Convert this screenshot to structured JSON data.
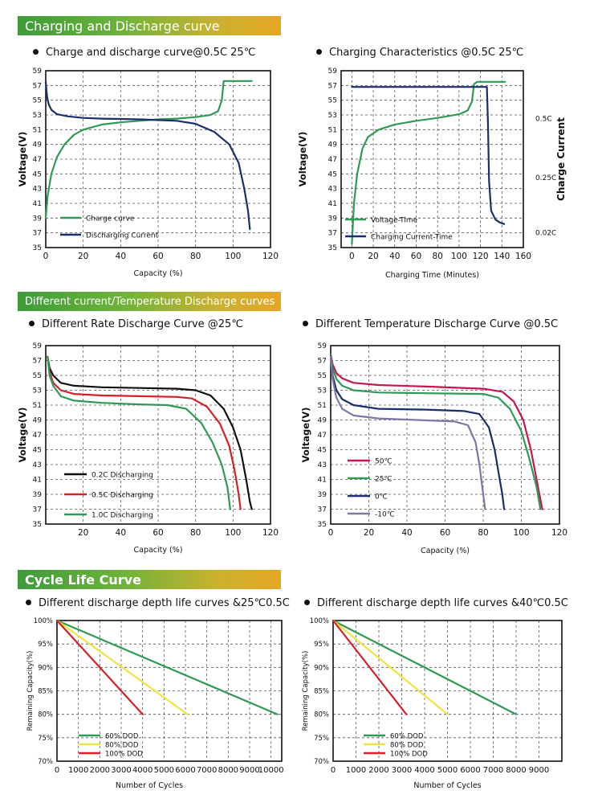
{
  "sections": {
    "charging": "Charging and Discharge curve",
    "different": "Different current/Temperature Discharge curves",
    "cycle": "Cycle Life Curve"
  },
  "colors": {
    "green": "#2f9a55",
    "navy": "#1c2d6b",
    "black": "#111111",
    "red": "#d42027",
    "crimson": "#c8174a",
    "purple": "#7b78a8",
    "yellow": "#f0e445"
  },
  "chart_data": [
    {
      "id": "c1",
      "type": "line",
      "title": "Charge and discharge curve@0.5C 25℃",
      "xlabel": "Capacity  (%)",
      "ylabel": "Voltage(V)",
      "xlim": [
        0,
        120
      ],
      "ylim": [
        35,
        59
      ],
      "xticks": [
        0,
        20,
        40,
        60,
        80,
        100,
        120
      ],
      "yticks": [
        35,
        37,
        39,
        41,
        43,
        45,
        47,
        49,
        51,
        53,
        55,
        57,
        59
      ],
      "legend": [
        {
          "label": "Charge curve",
          "color": "#2f9a55"
        },
        {
          "label": "Discharging Current",
          "color": "#1c2d6b"
        }
      ],
      "series": [
        {
          "name": "Charge curve",
          "color": "#2f9a55",
          "points": [
            [
              0,
              39
            ],
            [
              1,
              42
            ],
            [
              3,
              45
            ],
            [
              6,
              47.3
            ],
            [
              10,
              49
            ],
            [
              15,
              50.3
            ],
            [
              20,
              51
            ],
            [
              30,
              51.7
            ],
            [
              40,
              52
            ],
            [
              50,
              52.2
            ],
            [
              60,
              52.4
            ],
            [
              70,
              52.5
            ],
            [
              80,
              52.7
            ],
            [
              88,
              53
            ],
            [
              92,
              53.5
            ],
            [
              94,
              55
            ],
            [
              95,
              57.6
            ],
            [
              110,
              57.6
            ]
          ]
        },
        {
          "name": "Discharging Current",
          "color": "#1c2d6b",
          "points": [
            [
              0,
              57.5
            ],
            [
              0.7,
              55.5
            ],
            [
              1.5,
              54.5
            ],
            [
              3,
              53.7
            ],
            [
              6,
              53.1
            ],
            [
              12,
              52.8
            ],
            [
              20,
              52.6
            ],
            [
              30,
              52.5
            ],
            [
              40,
              52.45
            ],
            [
              50,
              52.4
            ],
            [
              60,
              52.3
            ],
            [
              70,
              52.2
            ],
            [
              80,
              51.8
            ],
            [
              90,
              50.7
            ],
            [
              98,
              49
            ],
            [
              103,
              46.5
            ],
            [
              106,
              43
            ],
            [
              108,
              40
            ],
            [
              109,
              37.5
            ]
          ]
        }
      ]
    },
    {
      "id": "c2",
      "type": "line",
      "title": "Charging Characteristics @0.5C 25℃",
      "xlabel": "Charging Time (Minutes)",
      "ylabel": "Voltage(V)",
      "y2label": "Charge Current",
      "xlim": [
        -10,
        160
      ],
      "ylim": [
        35,
        59
      ],
      "xticks": [
        0,
        20,
        40,
        60,
        80,
        100,
        120,
        140,
        160
      ],
      "yticks": [
        35,
        37,
        39,
        41,
        43,
        45,
        47,
        49,
        51,
        53,
        55,
        57,
        59
      ],
      "y2ticks": [
        {
          "label": "0.5C",
          "v": 52.5
        },
        {
          "label": "0.25C",
          "v": 44.5
        },
        {
          "label": "0.02C",
          "v": 37
        }
      ],
      "legend": [
        {
          "label": "Voltage-Time",
          "color": "#2f9a55"
        },
        {
          "label": "Charging Current-Time",
          "color": "#1c2d6b"
        }
      ],
      "series": [
        {
          "name": "Voltage-Time",
          "color": "#2f9a55",
          "points": [
            [
              0,
              35.5
            ],
            [
              2,
              41
            ],
            [
              5,
              45
            ],
            [
              10,
              48.5
            ],
            [
              15,
              50
            ],
            [
              25,
              51
            ],
            [
              40,
              51.7
            ],
            [
              60,
              52.2
            ],
            [
              80,
              52.6
            ],
            [
              100,
              53.1
            ],
            [
              108,
              53.6
            ],
            [
              112,
              54.8
            ],
            [
              114,
              57.2
            ],
            [
              117,
              57.5
            ],
            [
              143,
              57.5
            ]
          ]
        },
        {
          "name": "Charging Current-Time",
          "color": "#1c2d6b",
          "points": [
            [
              0,
              56.8
            ],
            [
              114,
              56.8
            ],
            [
              116,
              56.8
            ],
            [
              126,
              56.8
            ],
            [
              126,
              56.8
            ],
            [
              127,
              52
            ],
            [
              128,
              44
            ],
            [
              130,
              40
            ],
            [
              134,
              38.8
            ],
            [
              138,
              38.4
            ],
            [
              142,
              38.2
            ]
          ]
        }
      ]
    },
    {
      "id": "c3",
      "type": "line",
      "title": "Different Rate Discharge Curve @25℃",
      "xlabel": "Capacity  (%)",
      "ylabel": "Voltage(V)",
      "xlim": [
        0,
        120
      ],
      "ylim": [
        35,
        59
      ],
      "xticks": [
        20,
        40,
        60,
        80,
        100,
        120
      ],
      "yticks": [
        35,
        37,
        39,
        41,
        43,
        45,
        47,
        49,
        51,
        53,
        55,
        57,
        59
      ],
      "legend": [
        {
          "label": "0.2C Discharging",
          "color": "#111111"
        },
        {
          "label": "0.5C Discharging",
          "color": "#d42027"
        },
        {
          "label": "1.0C Discharging",
          "color": "#2f9a55"
        }
      ],
      "series": [
        {
          "name": "0.2C Discharging",
          "color": "#111111",
          "points": [
            [
              1,
              57.5
            ],
            [
              2,
              56
            ],
            [
              4,
              55
            ],
            [
              8,
              54
            ],
            [
              15,
              53.6
            ],
            [
              30,
              53.4
            ],
            [
              50,
              53.3
            ],
            [
              70,
              53.2
            ],
            [
              80,
              53
            ],
            [
              88,
              52.3
            ],
            [
              95,
              50.5
            ],
            [
              100,
              48
            ],
            [
              104,
              45
            ],
            [
              107,
              41
            ],
            [
              109,
              38
            ],
            [
              110,
              37
            ]
          ]
        },
        {
          "name": "0.5C Discharging",
          "color": "#d42027",
          "points": [
            [
              1,
              57.5
            ],
            [
              2,
              55.5
            ],
            [
              4,
              54
            ],
            [
              8,
              53
            ],
            [
              15,
              52.5
            ],
            [
              30,
              52.3
            ],
            [
              50,
              52.2
            ],
            [
              70,
              52.1
            ],
            [
              78,
              51.9
            ],
            [
              86,
              50.8
            ],
            [
              93,
              48.5
            ],
            [
              98,
              45.5
            ],
            [
              101,
              42
            ],
            [
              103,
              39
            ],
            [
              104,
              37
            ]
          ]
        },
        {
          "name": "1.0C Discharging",
          "color": "#2f9a55",
          "points": [
            [
              1,
              57.5
            ],
            [
              2,
              55
            ],
            [
              4,
              53.6
            ],
            [
              8,
              52.2
            ],
            [
              15,
              51.6
            ],
            [
              30,
              51.3
            ],
            [
              50,
              51.1
            ],
            [
              65,
              51
            ],
            [
              75,
              50.5
            ],
            [
              83,
              48.6
            ],
            [
              89,
              46
            ],
            [
              94,
              43
            ],
            [
              97,
              40
            ],
            [
              98.5,
              37
            ]
          ]
        }
      ]
    },
    {
      "id": "c4",
      "type": "line",
      "title": "Different Temperature Discharge Curve @0.5C",
      "xlabel": "Capacity  (%)",
      "ylabel": "Voltage(V)",
      "xlim": [
        0,
        120
      ],
      "ylim": [
        35,
        59
      ],
      "xticks": [
        0,
        20,
        40,
        60,
        80,
        100,
        120
      ],
      "yticks": [
        35,
        37,
        39,
        41,
        43,
        45,
        47,
        49,
        51,
        53,
        55,
        57,
        59
      ],
      "legend": [
        {
          "label": "50℃",
          "color": "#c8174a"
        },
        {
          "label": "25℃",
          "color": "#2f9a55"
        },
        {
          "label": "0℃",
          "color": "#1c2d6b"
        },
        {
          "label": "-10℃",
          "color": "#7b78a8"
        }
      ],
      "series": [
        {
          "name": "50℃",
          "color": "#c8174a",
          "points": [
            [
              0,
              57.8
            ],
            [
              1,
              56.5
            ],
            [
              3,
              55.3
            ],
            [
              6,
              54.6
            ],
            [
              12,
              54
            ],
            [
              25,
              53.7
            ],
            [
              50,
              53.5
            ],
            [
              80,
              53.2
            ],
            [
              90,
              52.8
            ],
            [
              96,
              51.5
            ],
            [
              101,
              49
            ],
            [
              105,
              45
            ],
            [
              108,
              41
            ],
            [
              111,
              37
            ]
          ]
        },
        {
          "name": "25℃",
          "color": "#2f9a55",
          "points": [
            [
              0,
              57.8
            ],
            [
              1,
              56
            ],
            [
              3,
              54.5
            ],
            [
              6,
              53.6
            ],
            [
              12,
              53
            ],
            [
              25,
              52.7
            ],
            [
              50,
              52.6
            ],
            [
              80,
              52.5
            ],
            [
              88,
              52
            ],
            [
              94,
              50.5
            ],
            [
              100,
              47.5
            ],
            [
              104,
              44
            ],
            [
              108,
              40
            ],
            [
              110,
              37
            ]
          ]
        },
        {
          "name": "0℃",
          "color": "#1c2d6b",
          "points": [
            [
              0,
              57.6
            ],
            [
              1,
              55
            ],
            [
              3,
              53
            ],
            [
              6,
              51.8
            ],
            [
              12,
              51
            ],
            [
              25,
              50.5
            ],
            [
              50,
              50.4
            ],
            [
              70,
              50.2
            ],
            [
              78,
              49.8
            ],
            [
              83,
              48
            ],
            [
              86,
              45
            ],
            [
              88,
              42
            ],
            [
              90,
              39
            ],
            [
              91,
              37
            ]
          ]
        },
        {
          "name": "-10℃",
          "color": "#7b78a8",
          "points": [
            [
              0,
              57.5
            ],
            [
              1,
              54.5
            ],
            [
              3,
              52
            ],
            [
              6,
              50.5
            ],
            [
              12,
              49.6
            ],
            [
              25,
              49.2
            ],
            [
              45,
              49
            ],
            [
              65,
              48.8
            ],
            [
              72,
              48.3
            ],
            [
              76,
              46
            ],
            [
              78,
              43
            ],
            [
              79.5,
              40
            ],
            [
              81,
              37
            ]
          ]
        }
      ]
    },
    {
      "id": "c5",
      "type": "line",
      "title": "Different discharge depth life curves &25℃0.5C",
      "xlabel": "Number of Cycles",
      "ylabel": "Remaining Capacity(%)",
      "xlim": [
        0,
        10500
      ],
      "ylim": [
        70,
        100
      ],
      "xticks": [
        0,
        1000,
        2000,
        3000,
        4000,
        5000,
        6000,
        7000,
        8000,
        9000,
        10000
      ],
      "yticks": [
        {
          "v": 70,
          "label": "70%"
        },
        {
          "v": 75,
          "label": "75%"
        },
        {
          "v": 80,
          "label": "80%"
        },
        {
          "v": 85,
          "label": "85%"
        },
        {
          "v": 90,
          "label": "90%"
        },
        {
          "v": 95,
          "label": "95%"
        },
        {
          "v": 100,
          "label": "100%"
        }
      ],
      "legend": [
        {
          "label": "60% DOD",
          "color": "#2f9a55"
        },
        {
          "label": "80% DOD",
          "color": "#f0e445"
        },
        {
          "label": "100% DOD",
          "color": "#d42027"
        }
      ],
      "series": [
        {
          "name": "60% DOD",
          "color": "#2f9a55",
          "points": [
            [
              0,
              100
            ],
            [
              10300,
              80
            ]
          ]
        },
        {
          "name": "80% DOD",
          "color": "#f0e445",
          "points": [
            [
              0,
              100
            ],
            [
              6100,
              80
            ]
          ]
        },
        {
          "name": "100% DOD",
          "color": "#d42027",
          "points": [
            [
              0,
              100
            ],
            [
              4000,
              80
            ]
          ]
        }
      ]
    },
    {
      "id": "c6",
      "type": "line",
      "title": "Different discharge depth life curves &40℃0.5C",
      "xlabel": "Number of Cycles",
      "ylabel": "Remaining Capacity(%)",
      "xlim": [
        0,
        10000
      ],
      "ylim": [
        70,
        100
      ],
      "xticks": [
        0,
        1000,
        2000,
        3000,
        4000,
        5000,
        6000,
        7000,
        8000,
        9000
      ],
      "yticks": [
        {
          "v": 70,
          "label": "70%"
        },
        {
          "v": 75,
          "label": "75%"
        },
        {
          "v": 80,
          "label": "80%"
        },
        {
          "v": 85,
          "label": "85%"
        },
        {
          "v": 90,
          "label": "90%"
        },
        {
          "v": 95,
          "label": "95%"
        },
        {
          "v": 100,
          "label": "100%"
        }
      ],
      "legend": [
        {
          "label": "60% DOD",
          "color": "#2f9a55"
        },
        {
          "label": "80% DOD",
          "color": "#f0e445"
        },
        {
          "label": "100% DOD",
          "color": "#d42027"
        }
      ],
      "series": [
        {
          "name": "60% DOD",
          "color": "#2f9a55",
          "points": [
            [
              0,
              100
            ],
            [
              8000,
              80
            ]
          ]
        },
        {
          "name": "80% DOD",
          "color": "#f0e445",
          "points": [
            [
              0,
              100
            ],
            [
              5000,
              80
            ]
          ]
        },
        {
          "name": "100% DOD",
          "color": "#d42027",
          "points": [
            [
              0,
              100
            ],
            [
              3200,
              80
            ]
          ]
        }
      ]
    }
  ]
}
